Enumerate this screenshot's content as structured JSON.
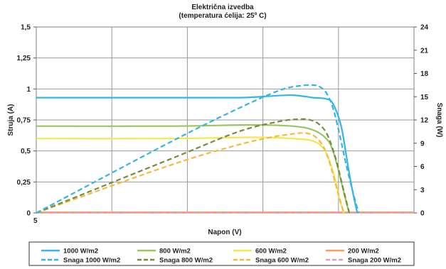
{
  "chart_data": {
    "type": "line",
    "title": "Električna izvedba",
    "subtitle": "(temperatura ćelija: 25º C)",
    "xlabel": "Napon (V)",
    "ylabel": "Struja (A)",
    "y2label": "Snaga (W)",
    "xlim": [
      0,
      28
    ],
    "ylim": [
      0,
      1.5
    ],
    "y2lim": [
      0,
      24
    ],
    "x_tick_label": "5",
    "y_ticks": [
      0,
      0.25,
      0.5,
      0.75,
      1,
      1.25,
      1.5
    ],
    "y_tick_labels": [
      "0",
      "0,25",
      "0,5",
      "0,75",
      "1",
      "1,25",
      "1,5"
    ],
    "y2_ticks": [
      0,
      3,
      6,
      9,
      12,
      15,
      18,
      21,
      24
    ],
    "y2_tick_labels": [
      "0",
      "3",
      "6",
      "9",
      "12",
      "15",
      "18",
      "21",
      "24"
    ],
    "grid": true,
    "legend_placement": "bottom",
    "series": [
      {
        "name": "1000 W/m2",
        "axis": "left",
        "style": "solid",
        "color": "#33b5e5",
        "x": [
          0,
          10,
          15,
          17,
          19,
          20.5,
          21.5,
          22,
          22.6,
          23,
          23.4,
          23.8
        ],
        "y": [
          0.93,
          0.93,
          0.93,
          0.94,
          0.95,
          0.93,
          0.92,
          0.88,
          0.7,
          0.45,
          0.2,
          0
        ]
      },
      {
        "name": "800 W/m2",
        "axis": "left",
        "style": "solid",
        "color": "#99c65a",
        "x": [
          0,
          10,
          16,
          19,
          20.5,
          21.5,
          22,
          22.5,
          22.9,
          23.2
        ],
        "y": [
          0.7,
          0.7,
          0.71,
          0.7,
          0.67,
          0.6,
          0.5,
          0.3,
          0.12,
          0
        ]
      },
      {
        "name": "600 W/m2",
        "axis": "left",
        "style": "solid",
        "color": "#f5e64b",
        "x": [
          0,
          10,
          16,
          19,
          20.5,
          21.3,
          21.8,
          22.2,
          22.5,
          22.8
        ],
        "y": [
          0.6,
          0.6,
          0.61,
          0.6,
          0.58,
          0.52,
          0.4,
          0.25,
          0.1,
          0
        ]
      },
      {
        "name": "200 W/m2",
        "axis": "left",
        "style": "solid",
        "color": "#f5a05a",
        "x": [
          0,
          28
        ],
        "y": [
          0.005,
          0.005
        ]
      },
      {
        "name": "Snaga 1000 W/m2",
        "axis": "right",
        "style": "dashed",
        "color": "#33b5e5",
        "x": [
          0,
          10,
          15,
          18,
          19.5,
          20.5,
          21,
          21.5,
          22,
          22.5,
          23,
          23.5,
          23.9
        ],
        "y": [
          0,
          9.2,
          13.5,
          15.8,
          16.4,
          16.5,
          16.3,
          15.5,
          13.5,
          10,
          6,
          2.5,
          0
        ]
      },
      {
        "name": "Snaga 800 W/m2",
        "axis": "right",
        "style": "dashed",
        "color": "#7a8a3c",
        "x": [
          0,
          10,
          15,
          18,
          19.5,
          20.3,
          21,
          21.6,
          22.2,
          22.7,
          23.2
        ],
        "y": [
          0,
          7,
          10.5,
          11.8,
          12.1,
          12.0,
          11.4,
          10,
          7,
          3.5,
          0
        ]
      },
      {
        "name": "Snaga 600 W/m2",
        "axis": "right",
        "style": "dashed",
        "color": "#f5b93c",
        "x": [
          0,
          10,
          15,
          17.5,
          19,
          20,
          20.7,
          21.3,
          21.8,
          22.3,
          22.8
        ],
        "y": [
          0,
          6.2,
          8.8,
          9.8,
          10.2,
          10.3,
          9.8,
          8.5,
          6.2,
          3,
          0
        ]
      },
      {
        "name": "Snaga 200 W/m2",
        "axis": "right",
        "style": "dashed",
        "color": "#e0a0b8",
        "x": [
          0,
          28
        ],
        "y": [
          0.03,
          0.03
        ]
      }
    ]
  }
}
